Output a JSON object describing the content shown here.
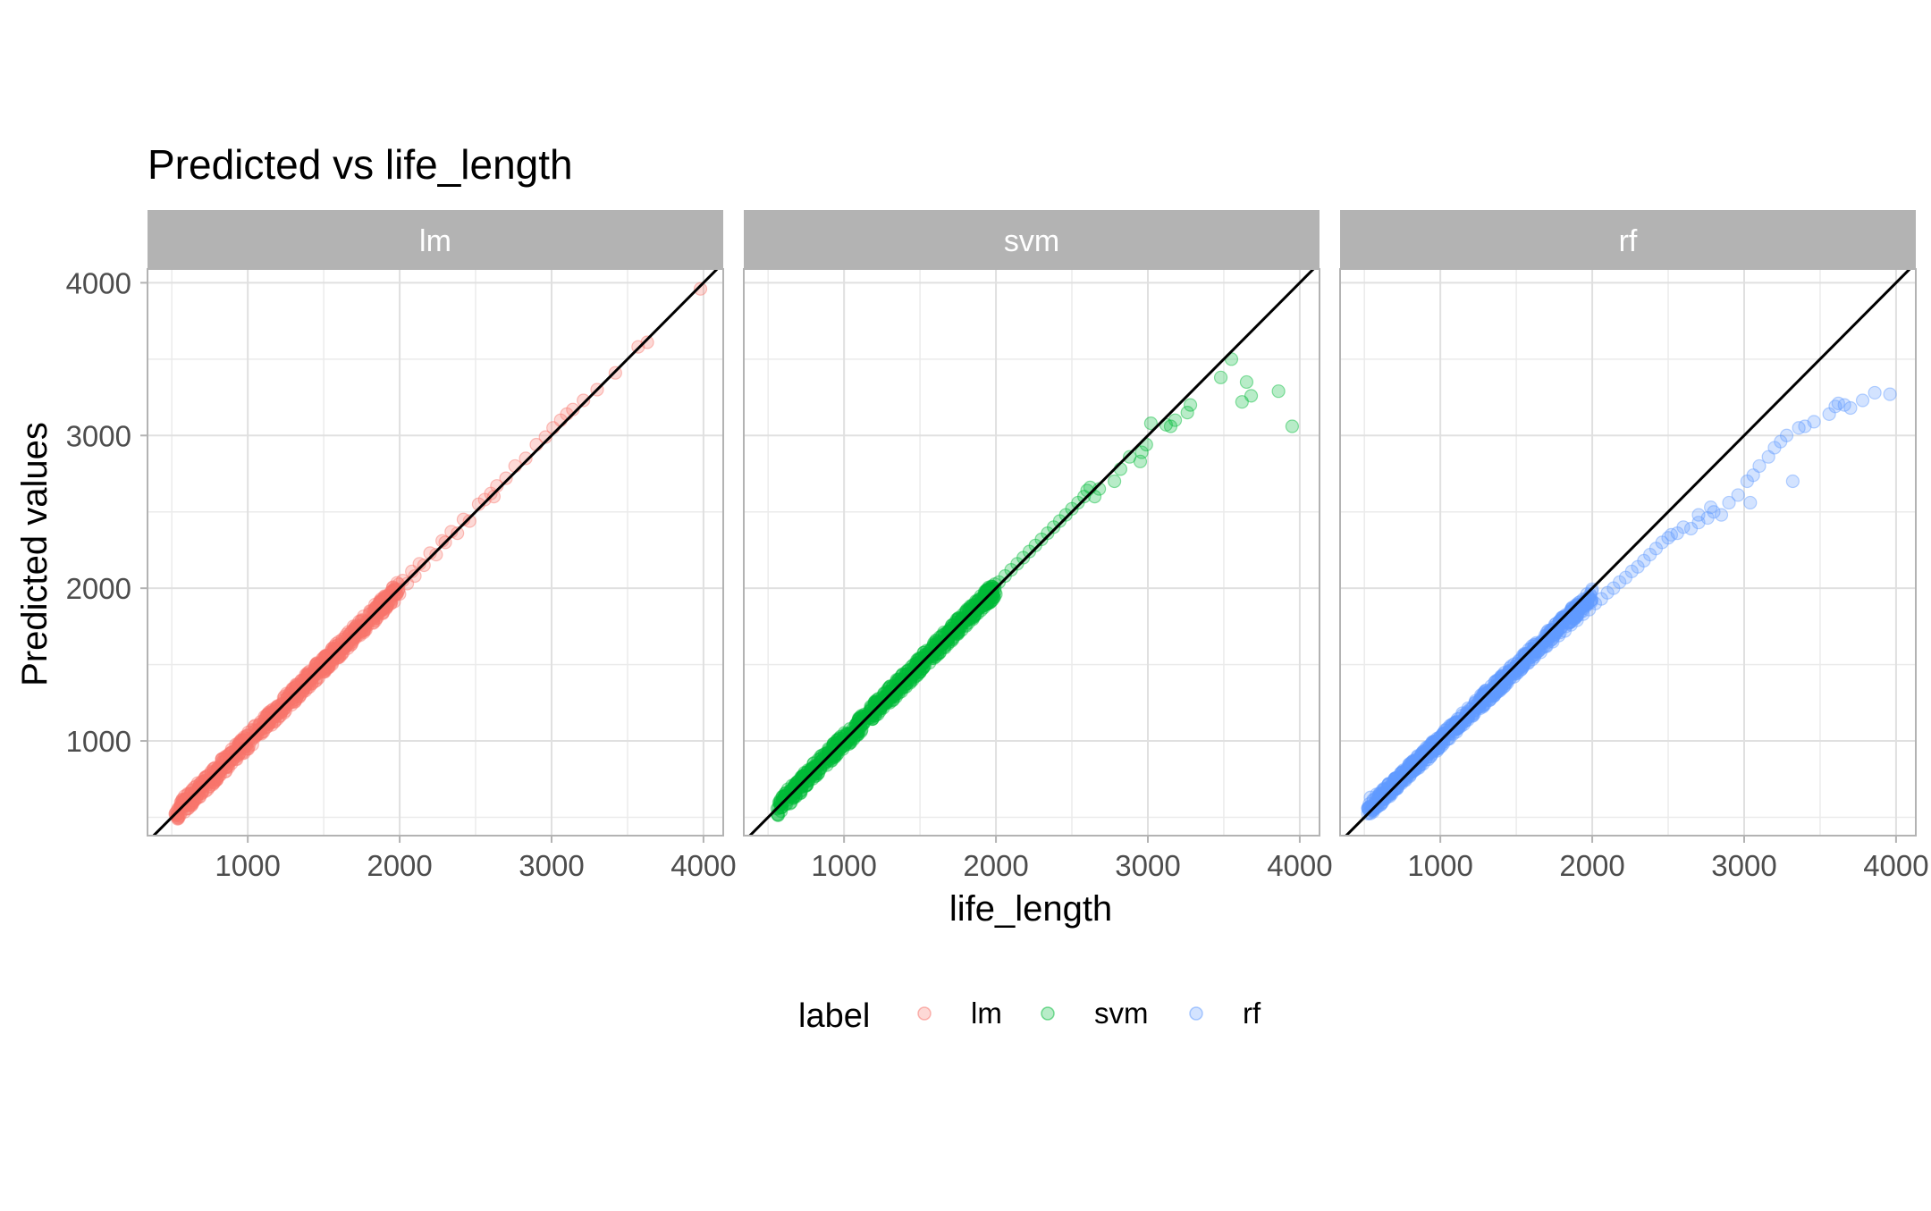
{
  "chart_data": {
    "type": "scatter",
    "title": "Predicted vs life_length",
    "xlabel": "life_length",
    "ylabel": "Predicted values",
    "xlim": [
      340,
      4130
    ],
    "ylim": [
      380,
      4090
    ],
    "x_ticks": [
      1000,
      2000,
      3000,
      4000
    ],
    "y_ticks": [
      1000,
      2000,
      3000,
      4000
    ],
    "grid": true,
    "reference_line": {
      "slope": 1,
      "intercept": 0,
      "color": "#000000"
    },
    "legend": {
      "title": "label",
      "position": "bottom",
      "entries": [
        "lm",
        "svm",
        "rf"
      ]
    },
    "colors": {
      "lm": "#F8766D",
      "svm": "#00BA38",
      "rf": "#619CFF",
      "strip_bg": "#B3B3B3",
      "strip_text": "#FFFFFF",
      "grid": "#E0E0E0"
    },
    "series": [
      {
        "name": "lm",
        "range": [
          520,
          2000
        ],
        "points": [
          [
            620,
            640
          ],
          [
            650,
            610
          ],
          [
            680,
            700
          ],
          [
            700,
            680
          ],
          [
            720,
            760
          ],
          [
            740,
            730
          ],
          [
            760,
            790
          ],
          [
            780,
            760
          ],
          [
            800,
            820
          ],
          [
            820,
            800
          ],
          [
            840,
            860
          ],
          [
            860,
            830
          ],
          [
            880,
            900
          ],
          [
            900,
            880
          ],
          [
            920,
            940
          ],
          [
            940,
            910
          ],
          [
            960,
            990
          ],
          [
            980,
            960
          ],
          [
            1000,
            1030
          ],
          [
            1020,
            1000
          ],
          [
            1040,
            1070
          ],
          [
            1060,
            1040
          ],
          [
            1080,
            1110
          ],
          [
            1100,
            1080
          ],
          [
            1120,
            1150
          ],
          [
            1140,
            1120
          ],
          [
            1160,
            1190
          ],
          [
            1180,
            1160
          ],
          [
            1200,
            1230
          ],
          [
            1220,
            1200
          ],
          [
            1240,
            1270
          ],
          [
            1260,
            1240
          ],
          [
            1280,
            1310
          ],
          [
            1300,
            1280
          ],
          [
            1320,
            1350
          ],
          [
            1340,
            1320
          ],
          [
            1360,
            1390
          ],
          [
            1380,
            1360
          ],
          [
            1400,
            1430
          ],
          [
            1420,
            1400
          ],
          [
            1440,
            1470
          ],
          [
            1460,
            1440
          ],
          [
            1480,
            1510
          ],
          [
            1500,
            1480
          ],
          [
            1520,
            1550
          ],
          [
            1540,
            1520
          ],
          [
            1560,
            1590
          ],
          [
            1580,
            1560
          ],
          [
            1600,
            1630
          ],
          [
            1620,
            1600
          ],
          [
            1640,
            1670
          ],
          [
            1660,
            1640
          ],
          [
            1680,
            1710
          ],
          [
            1700,
            1680
          ],
          [
            1720,
            1750
          ],
          [
            1740,
            1720
          ],
          [
            1760,
            1790
          ],
          [
            1780,
            1760
          ],
          [
            1800,
            1830
          ],
          [
            1820,
            1800
          ],
          [
            1840,
            1870
          ],
          [
            1860,
            1840
          ],
          [
            1880,
            1910
          ],
          [
            1900,
            1880
          ],
          [
            1920,
            1950
          ],
          [
            1940,
            1920
          ],
          [
            1960,
            1990
          ],
          [
            1980,
            1960
          ],
          [
            2020,
            2050
          ],
          [
            2050,
            2030
          ],
          [
            2080,
            2110
          ],
          [
            2100,
            2080
          ],
          [
            2130,
            2160
          ],
          [
            2160,
            2150
          ],
          [
            2200,
            2230
          ],
          [
            2240,
            2220
          ],
          [
            2280,
            2310
          ],
          [
            2300,
            2300
          ],
          [
            2340,
            2370
          ],
          [
            2380,
            2360
          ],
          [
            2420,
            2450
          ],
          [
            2460,
            2440
          ],
          [
            2520,
            2550
          ],
          [
            2560,
            2580
          ],
          [
            2600,
            2620
          ],
          [
            2620,
            2600
          ],
          [
            2640,
            2670
          ],
          [
            2700,
            2720
          ],
          [
            2760,
            2800
          ],
          [
            2830,
            2850
          ],
          [
            2900,
            2940
          ],
          [
            2960,
            2990
          ],
          [
            3010,
            3050
          ],
          [
            3060,
            3100
          ],
          [
            3100,
            3140
          ],
          [
            3140,
            3170
          ],
          [
            3210,
            3230
          ],
          [
            3300,
            3300
          ],
          [
            3420,
            3410
          ],
          [
            3570,
            3580
          ],
          [
            3630,
            3610
          ],
          [
            3980,
            3960
          ],
          [
            560,
            580
          ],
          [
            590,
            620
          ],
          [
            610,
            560
          ]
        ]
      },
      {
        "name": "svm",
        "range": [
          560,
          2000
        ],
        "points": [
          [
            580,
            600
          ],
          [
            620,
            640
          ],
          [
            650,
            680
          ],
          [
            680,
            660
          ],
          [
            700,
            720
          ],
          [
            720,
            700
          ],
          [
            740,
            760
          ],
          [
            760,
            740
          ],
          [
            780,
            800
          ],
          [
            800,
            790
          ],
          [
            820,
            840
          ],
          [
            840,
            820
          ],
          [
            860,
            880
          ],
          [
            880,
            860
          ],
          [
            900,
            920
          ],
          [
            920,
            900
          ],
          [
            940,
            960
          ],
          [
            960,
            950
          ],
          [
            980,
            1000
          ],
          [
            1000,
            990
          ],
          [
            1020,
            1040
          ],
          [
            1040,
            1030
          ],
          [
            1060,
            1080
          ],
          [
            1080,
            1070
          ],
          [
            1100,
            1120
          ],
          [
            1120,
            1110
          ],
          [
            1140,
            1160
          ],
          [
            1160,
            1150
          ],
          [
            1180,
            1200
          ],
          [
            1200,
            1190
          ],
          [
            1220,
            1240
          ],
          [
            1240,
            1230
          ],
          [
            1260,
            1280
          ],
          [
            1280,
            1270
          ],
          [
            1300,
            1320
          ],
          [
            1320,
            1310
          ],
          [
            1340,
            1360
          ],
          [
            1360,
            1350
          ],
          [
            1380,
            1400
          ],
          [
            1400,
            1390
          ],
          [
            1420,
            1440
          ],
          [
            1440,
            1430
          ],
          [
            1460,
            1480
          ],
          [
            1480,
            1470
          ],
          [
            1500,
            1520
          ],
          [
            1520,
            1510
          ],
          [
            1540,
            1560
          ],
          [
            1560,
            1550
          ],
          [
            1580,
            1600
          ],
          [
            1600,
            1590
          ],
          [
            1620,
            1640
          ],
          [
            1640,
            1630
          ],
          [
            1660,
            1680
          ],
          [
            1680,
            1670
          ],
          [
            1700,
            1720
          ],
          [
            1720,
            1710
          ],
          [
            1740,
            1760
          ],
          [
            1760,
            1750
          ],
          [
            1780,
            1800
          ],
          [
            1800,
            1790
          ],
          [
            1820,
            1840
          ],
          [
            1840,
            1830
          ],
          [
            1860,
            1880
          ],
          [
            1880,
            1870
          ],
          [
            1900,
            1920
          ],
          [
            1920,
            1910
          ],
          [
            1940,
            1960
          ],
          [
            1960,
            1950
          ],
          [
            1980,
            2000
          ],
          [
            2020,
            2040
          ],
          [
            2060,
            2080
          ],
          [
            2100,
            2120
          ],
          [
            2140,
            2160
          ],
          [
            2180,
            2200
          ],
          [
            2220,
            2240
          ],
          [
            2260,
            2280
          ],
          [
            2300,
            2320
          ],
          [
            2340,
            2360
          ],
          [
            2380,
            2400
          ],
          [
            2420,
            2440
          ],
          [
            2460,
            2480
          ],
          [
            2500,
            2520
          ],
          [
            2540,
            2560
          ],
          [
            2580,
            2600
          ],
          [
            2600,
            2640
          ],
          [
            2620,
            2660
          ],
          [
            2650,
            2600
          ],
          [
            2680,
            2650
          ],
          [
            2780,
            2700
          ],
          [
            2820,
            2780
          ],
          [
            2880,
            2860
          ],
          [
            2950,
            2830
          ],
          [
            2960,
            2890
          ],
          [
            2990,
            2940
          ],
          [
            3020,
            3080
          ],
          [
            3120,
            3070
          ],
          [
            3150,
            3060
          ],
          [
            3180,
            3100
          ],
          [
            3260,
            3150
          ],
          [
            3280,
            3200
          ],
          [
            3480,
            3380
          ],
          [
            3550,
            3500
          ],
          [
            3650,
            3350
          ],
          [
            3620,
            3220
          ],
          [
            3680,
            3260
          ],
          [
            3860,
            3290
          ],
          [
            3950,
            3060
          ]
        ]
      },
      {
        "name": "rf",
        "range": [
          520,
          2000
        ],
        "points": [
          [
            540,
            630
          ],
          [
            580,
            650
          ],
          [
            620,
            680
          ],
          [
            660,
            720
          ],
          [
            700,
            750
          ],
          [
            740,
            790
          ],
          [
            780,
            820
          ],
          [
            820,
            860
          ],
          [
            860,
            890
          ],
          [
            900,
            920
          ],
          [
            940,
            960
          ],
          [
            980,
            990
          ],
          [
            1020,
            1020
          ],
          [
            1060,
            1060
          ],
          [
            1100,
            1090
          ],
          [
            1140,
            1130
          ],
          [
            1180,
            1160
          ],
          [
            1220,
            1200
          ],
          [
            1260,
            1230
          ],
          [
            1300,
            1270
          ],
          [
            1340,
            1300
          ],
          [
            1380,
            1340
          ],
          [
            1420,
            1370
          ],
          [
            1460,
            1410
          ],
          [
            1500,
            1440
          ],
          [
            1540,
            1480
          ],
          [
            1580,
            1510
          ],
          [
            1620,
            1550
          ],
          [
            1660,
            1580
          ],
          [
            1700,
            1620
          ],
          [
            1740,
            1650
          ],
          [
            1780,
            1690
          ],
          [
            1820,
            1720
          ],
          [
            1860,
            1760
          ],
          [
            1900,
            1790
          ],
          [
            1940,
            1830
          ],
          [
            1980,
            1860
          ],
          [
            2020,
            1900
          ],
          [
            2060,
            1930
          ],
          [
            2100,
            1970
          ],
          [
            2140,
            2000
          ],
          [
            2180,
            2040
          ],
          [
            2220,
            2070
          ],
          [
            2260,
            2110
          ],
          [
            2300,
            2140
          ],
          [
            2340,
            2180
          ],
          [
            2380,
            2220
          ],
          [
            2420,
            2260
          ],
          [
            2460,
            2300
          ],
          [
            2500,
            2330
          ],
          [
            2520,
            2350
          ],
          [
            2560,
            2360
          ],
          [
            2600,
            2400
          ],
          [
            2650,
            2390
          ],
          [
            2700,
            2430
          ],
          [
            2760,
            2460
          ],
          [
            2800,
            2500
          ],
          [
            2850,
            2480
          ],
          [
            2900,
            2560
          ],
          [
            2960,
            2610
          ],
          [
            3020,
            2700
          ],
          [
            3060,
            2740
          ],
          [
            3100,
            2800
          ],
          [
            3160,
            2860
          ],
          [
            3200,
            2920
          ],
          [
            3240,
            2960
          ],
          [
            3280,
            3000
          ],
          [
            3360,
            3050
          ],
          [
            3400,
            3060
          ],
          [
            3460,
            3090
          ],
          [
            3560,
            3140
          ],
          [
            3620,
            3210
          ],
          [
            3600,
            3190
          ],
          [
            3660,
            3200
          ],
          [
            3700,
            3180
          ],
          [
            3860,
            3280
          ],
          [
            3960,
            3270
          ],
          [
            3780,
            3230
          ],
          [
            2700,
            2480
          ],
          [
            2780,
            2530
          ],
          [
            3320,
            2700
          ],
          [
            3040,
            2560
          ]
        ]
      }
    ]
  },
  "facets": [
    "lm",
    "svm",
    "rf"
  ]
}
